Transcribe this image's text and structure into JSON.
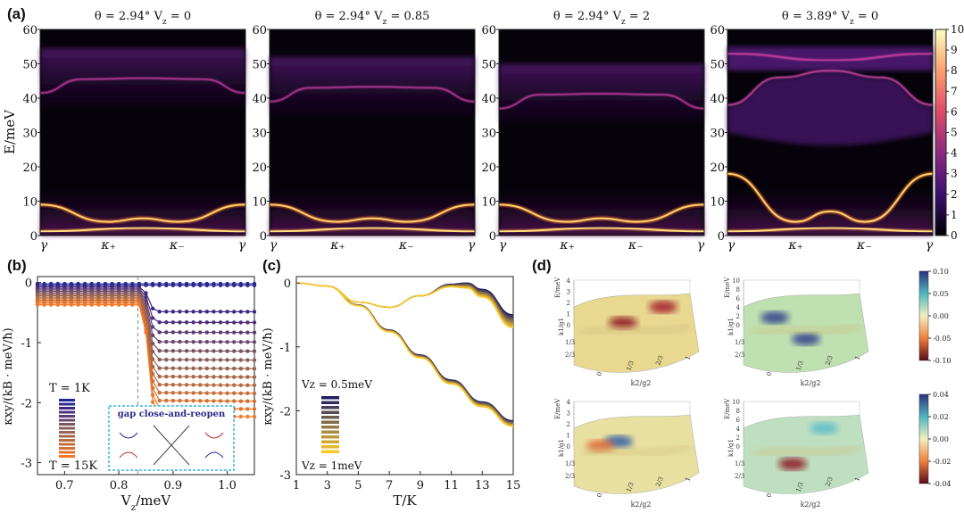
{
  "panel_labels": {
    "a": "(a)",
    "b": "(b)",
    "c": "(c)",
    "d": "(d)"
  },
  "chart_data": [
    {
      "id": "a",
      "type": "heatmap",
      "ylabel": "E/meV",
      "ylim": [
        0,
        60
      ],
      "yticks": [
        "0",
        "10",
        "20",
        "30",
        "40",
        "50",
        "60"
      ],
      "xticks": [
        "γ",
        "κ₊",
        "κ₋",
        "γ"
      ],
      "colorbar": {
        "min": 0,
        "max": 10,
        "ticks": [
          "0",
          "1",
          "2",
          "3",
          "4",
          "5",
          "6",
          "7",
          "8",
          "9",
          "10"
        ]
      },
      "subplots": [
        {
          "title": "θ = 2.94°  V",
          "sub": "z",
          "tail": " = 0",
          "lower_bands": [
            [
              0,
              9
            ],
            [
              0.33,
              4
            ],
            [
              0.5,
              5
            ],
            [
              0.67,
              4
            ],
            [
              1,
              9
            ]
          ],
          "upper_band": 45.5
        },
        {
          "title": "θ = 2.94°  V",
          "sub": "z",
          "tail": " = 0.85",
          "lower_bands": [
            [
              0,
              9
            ],
            [
              0.33,
              4
            ],
            [
              0.5,
              5
            ],
            [
              0.67,
              4
            ],
            [
              1,
              9
            ]
          ],
          "upper_band": 43
        },
        {
          "title": "θ = 2.94°  V",
          "sub": "z",
          "tail": " = 2",
          "lower_bands": [
            [
              0,
              9
            ],
            [
              0.33,
              4
            ],
            [
              0.5,
              5
            ],
            [
              0.67,
              4
            ],
            [
              1,
              9
            ]
          ],
          "upper_band": 41
        },
        {
          "title": "θ = 3.89°  V",
          "sub": "z",
          "tail": " = 0",
          "lower_bands": [
            [
              0,
              18
            ],
            [
              0.33,
              4
            ],
            [
              0.5,
              7
            ],
            [
              0.67,
              4
            ],
            [
              1,
              18
            ]
          ],
          "upper_band": 49
        }
      ]
    },
    {
      "id": "b",
      "type": "line",
      "xlabel": "V",
      "xlabel_sub": "z",
      "xlabel_tail": "/meV",
      "ylabel": "κxy/(kB · meV/ħ)",
      "xlim": [
        0.65,
        1.05
      ],
      "ylim": [
        -3.2,
        0.1
      ],
      "xticks": [
        "0.7",
        "0.8",
        "0.9",
        "1.0"
      ],
      "yticks": [
        "0",
        "-1",
        "-2",
        "-3"
      ],
      "legend_top": "T = 1K",
      "legend_bottom": "T = 15K",
      "transition_x": 0.85,
      "inset_title": "gap close-and-reopen",
      "series_count": 15,
      "values_left_min": -0.35,
      "values_right_min": -2.2
    },
    {
      "id": "c",
      "type": "line",
      "xlabel": "T/K",
      "ylabel": "κxy/(kB · meV/ħ)",
      "xlim": [
        1,
        15
      ],
      "ylim": [
        -3,
        0.1
      ],
      "xticks": [
        "1",
        "3",
        "5",
        "7",
        "9",
        "11",
        "13",
        "15"
      ],
      "yticks": [
        "0",
        "-1",
        "-2",
        "-3"
      ],
      "legend_top": "Vz = 0.5meV",
      "legend_bottom": "Vz = 1meV",
      "upper_family": {
        "x": [
          1,
          3,
          5,
          7,
          9,
          11,
          12,
          13,
          15
        ],
        "y": [
          0,
          -0.05,
          -0.3,
          -0.38,
          -0.2,
          -0.02,
          0,
          -0.1,
          -0.5
        ]
      },
      "lower_family": {
        "x": [
          1,
          3,
          5,
          7,
          9,
          11,
          13,
          15
        ],
        "y": [
          0,
          -0.05,
          -0.35,
          -0.75,
          -1.15,
          -1.55,
          -1.9,
          -2.2
        ]
      }
    },
    {
      "id": "d",
      "type": "heatmap",
      "surface_axis": {
        "x": "k2/g2",
        "y": "k1/g1",
        "z": "E/meV"
      },
      "colorbars": [
        {
          "ticks": [
            "0.10",
            "0.05",
            "0.00",
            "-0.05",
            "-0.10"
          ]
        },
        {
          "ticks": [
            "0.04",
            "0.02",
            "0.00",
            "-0.02",
            "-0.04"
          ]
        }
      ],
      "tick_labels": {
        "x": [
          "0",
          "1/3",
          "2/3",
          "1"
        ],
        "z_small": [
          "0",
          "1",
          "2",
          "3",
          "4"
        ],
        "z_large": [
          "0",
          "2",
          "4",
          "6",
          "8",
          "10"
        ]
      }
    }
  ]
}
